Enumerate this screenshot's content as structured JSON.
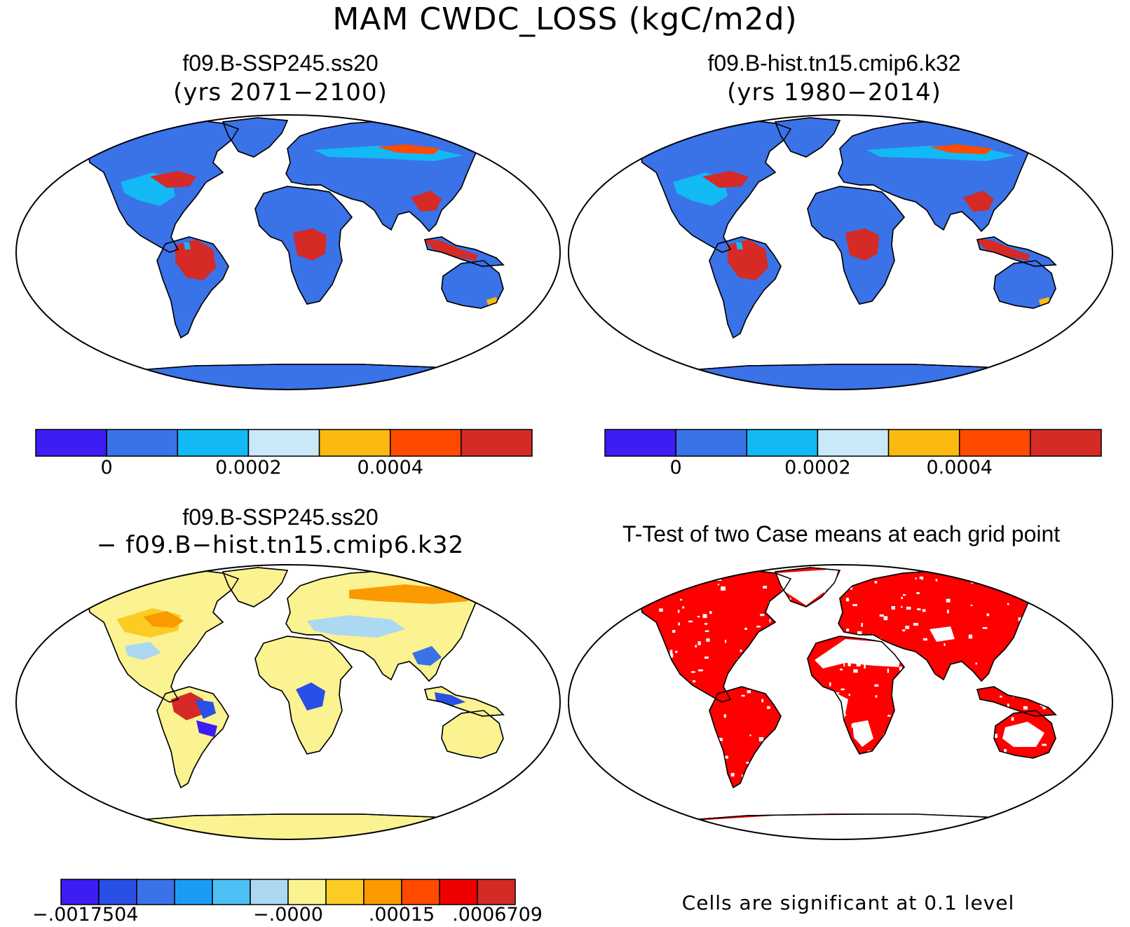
{
  "title": "MAM CWDC_LOSS (kgC/m2d)",
  "colors": {
    "ocean": "#ffffff",
    "land_base_abs": "#3a72e8",
    "land_base_diff": "#fbf291",
    "land_base_ttest": "#ff0000"
  },
  "panels": [
    {
      "id": "case1",
      "title": "f09.B-SSP245.ss20",
      "subtitle": "(yrs 2071−2100)",
      "colorbar": {
        "colors": [
          "#3c1df4",
          "#3a72e8",
          "#13b9f4",
          "#c9e9f8",
          "#fbba12",
          "#ff4a00",
          "#d52a26"
        ],
        "tick_labels": [
          {
            "text": "0",
            "boundary": 1
          },
          {
            "text": "0.0002",
            "boundary": 3
          },
          {
            "text": "0.0004",
            "boundary": 5
          }
        ]
      }
    },
    {
      "id": "case2",
      "title": "f09.B-hist.tn15.cmip6.k32",
      "subtitle": "(yrs 1980−2014)",
      "colorbar": {
        "colors": [
          "#3c1df4",
          "#3a72e8",
          "#13b9f4",
          "#c9e9f8",
          "#fbba12",
          "#ff4a00",
          "#d52a26"
        ],
        "tick_labels": [
          {
            "text": "0",
            "boundary": 1
          },
          {
            "text": "0.0002",
            "boundary": 3
          },
          {
            "text": "0.0004",
            "boundary": 5
          }
        ]
      }
    },
    {
      "id": "diff",
      "title": "f09.B-SSP245.ss20",
      "subtitle": "− f09.B−hist.tn15.cmip6.k32",
      "colorbar": {
        "colors": [
          "#3c1df4",
          "#2a4fe6",
          "#3a72e8",
          "#1a9cf6",
          "#4cc0f5",
          "#acd8f2",
          "#fbf291",
          "#fccb24",
          "#fb9a00",
          "#ff4a00",
          "#ee0000",
          "#d52a26"
        ],
        "tick_labels": [
          {
            "text": "−.0017504",
            "boundary": 0
          },
          {
            "text": "−.0000",
            "boundary": 6
          },
          {
            "text": ".00015",
            "boundary": 9
          },
          {
            "text": ".0006709",
            "boundary": 12
          }
        ]
      }
    },
    {
      "id": "ttest",
      "title": "T-Test of two Case means at each grid point",
      "note": "Cells are significant at 0.1 level"
    }
  ]
}
